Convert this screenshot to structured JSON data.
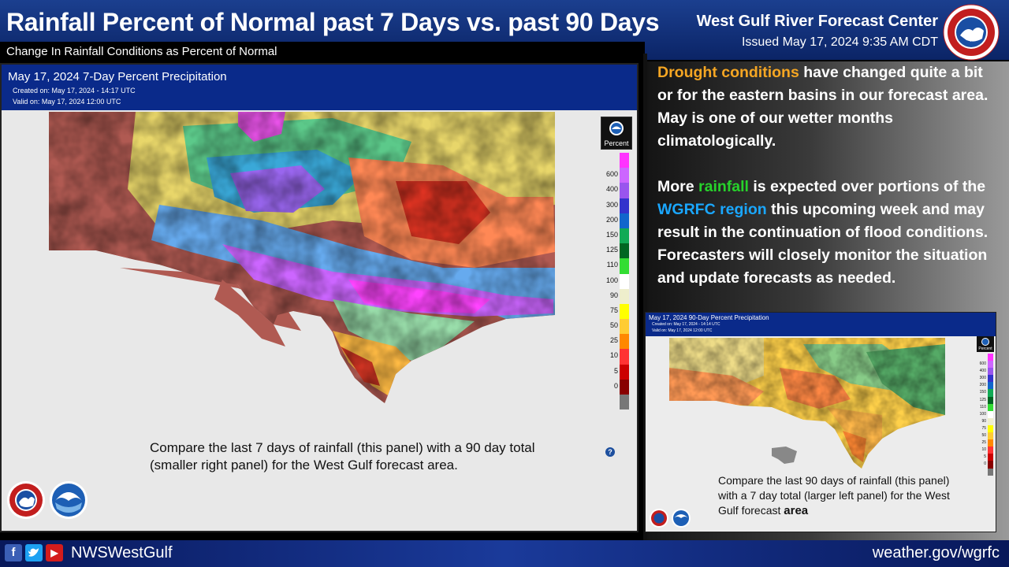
{
  "header": {
    "title": "Rainfall Percent of Normal  past 7 Days vs. past 90 Days",
    "subtitle": "Change In Rainfall Conditions as Percent of Normal",
    "office": "West Gulf River Forecast Center",
    "issued": "Issued May 17, 2024  9:35 AM CDT"
  },
  "side_text": {
    "p1_highlight": "Drought conditions",
    "p1_rest": " have changed quite a bit or for the eastern basins in our forecast area.  May is one of our wetter months climatologically.",
    "p2_a": "More ",
    "p2_highlight1": "rainfall",
    "p2_b": "  is expected over portions of the ",
    "p2_highlight2": "WGRFC region",
    "p2_c": " this upcoming week and may result in the continuation of flood conditions.   Forecasters will closely monitor the situation and update forecasts as needed."
  },
  "map7": {
    "title": "May 17, 2024 7-Day Percent Precipitation",
    "created": "Created on: May 17, 2024 - 14:17 UTC",
    "valid": "Valid on: May 17, 2024 12:00 UTC",
    "legend_label": "Percent",
    "caption": "Compare the last 7 days of rainfall (this panel) with a 90 day total (smaller right panel)  for the West Gulf forecast area."
  },
  "map90": {
    "title": "May 17, 2024 90-Day Percent Precipitation",
    "created": "Created on: May 17, 2024 - 14:14 UTC",
    "valid": "Valid on: May 17, 2024 12:00 UTC",
    "legend_label": "Percent",
    "caption_main": "Compare the last 90 days of rainfall (this panel) with a 7 day total (larger left panel) for the West Gulf forecast ",
    "caption_end": "area"
  },
  "legend": {
    "values": [
      "600",
      "400",
      "300",
      "200",
      "150",
      "125",
      "110",
      "100",
      "90",
      "75",
      "50",
      "25",
      "10",
      "5",
      "0"
    ],
    "colors": [
      "#ff33ff",
      "#cc66ff",
      "#9955ee",
      "#3333cc",
      "#1166cc",
      "#11aa55",
      "#006622",
      "#33dd33",
      "#ffffff",
      "#eeeecc",
      "#ffff00",
      "#ffcc33",
      "#ff8800",
      "#ff3333",
      "#cc0000",
      "#880000",
      "#777777"
    ]
  },
  "footer": {
    "handle": "NWSWestGulf",
    "site": "weather.gov/wgrfc",
    "icons": [
      "facebook-icon",
      "twitter-icon",
      "youtube-icon"
    ]
  },
  "logos": {
    "nws_ring_text": "NATIONAL WEATHER SERVICE",
    "noaa": "NOAA"
  },
  "colors": {
    "header_blue": "#0b2466",
    "map_header_blue": "#0a2a8a",
    "accent_orange": "#f5a623",
    "accent_green": "#27d22b",
    "accent_blue": "#1aa7ff"
  }
}
